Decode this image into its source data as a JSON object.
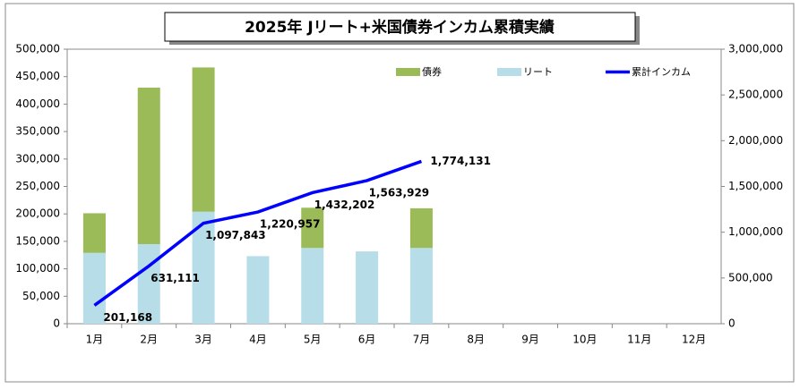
{
  "chart_data": {
    "type": "bar",
    "title": "2025年  Jリート+米国債券インカム累積実績",
    "categories": [
      "1月",
      "2月",
      "3月",
      "4月",
      "5月",
      "6月",
      "7月",
      "8月",
      "9月",
      "10月",
      "11月",
      "12月"
    ],
    "series": [
      {
        "name": "債券",
        "type": "bar",
        "color": "#9bbb59",
        "values": [
          72168,
          284943,
          262732,
          0,
          73245,
          0,
          72202,
          null,
          null,
          null,
          null,
          null
        ]
      },
      {
        "name": "リート",
        "type": "bar",
        "color": "#b7dde8",
        "values": [
          129000,
          145000,
          204000,
          123114,
          138000,
          131727,
          138000,
          null,
          null,
          null,
          null,
          null
        ]
      },
      {
        "name": "累計インカム",
        "type": "line",
        "axis": "y2",
        "color": "#0000ff",
        "values": [
          201168,
          631111,
          1097843,
          1220957,
          1432202,
          1563929,
          1774131,
          null,
          null,
          null,
          null,
          null
        ],
        "value_labels": [
          "201,168",
          "631,111",
          "1,097,843",
          "1,220,957",
          "1,432,202",
          "1,563,929",
          "1,774,131",
          null,
          null,
          null,
          null,
          null
        ]
      }
    ],
    "ylim": [
      0,
      500000
    ],
    "yticks": [
      0,
      {
        "value": 50000,
        "label": "50,000"
      },
      {
        "value": 100000,
        "label": "100,000"
      },
      {
        "value": 150000,
        "label": "150,000"
      },
      {
        "value": 200000,
        "label": "200,000"
      },
      {
        "value": 250000,
        "label": "250,000"
      },
      {
        "value": 300000,
        "label": "300,000"
      },
      {
        "value": 350000,
        "label": "350,000"
      },
      {
        "value": 400000,
        "label": "400,000"
      },
      {
        "value": 450000,
        "label": "450,000"
      },
      {
        "value": 500000,
        "label": "500,000"
      }
    ],
    "y2lim": [
      0,
      3000000
    ],
    "y2ticks": [
      0,
      {
        "value": 500000,
        "label": "500,000"
      },
      {
        "value": 1000000,
        "label": "1,000,000"
      },
      {
        "value": 1500000,
        "label": "1,500,000"
      },
      {
        "value": 2000000,
        "label": "2,000,000"
      },
      {
        "value": 2500000,
        "label": "2,500,000"
      },
      {
        "value": 3000000,
        "label": "3,000,000"
      }
    ],
    "grid": false
  }
}
